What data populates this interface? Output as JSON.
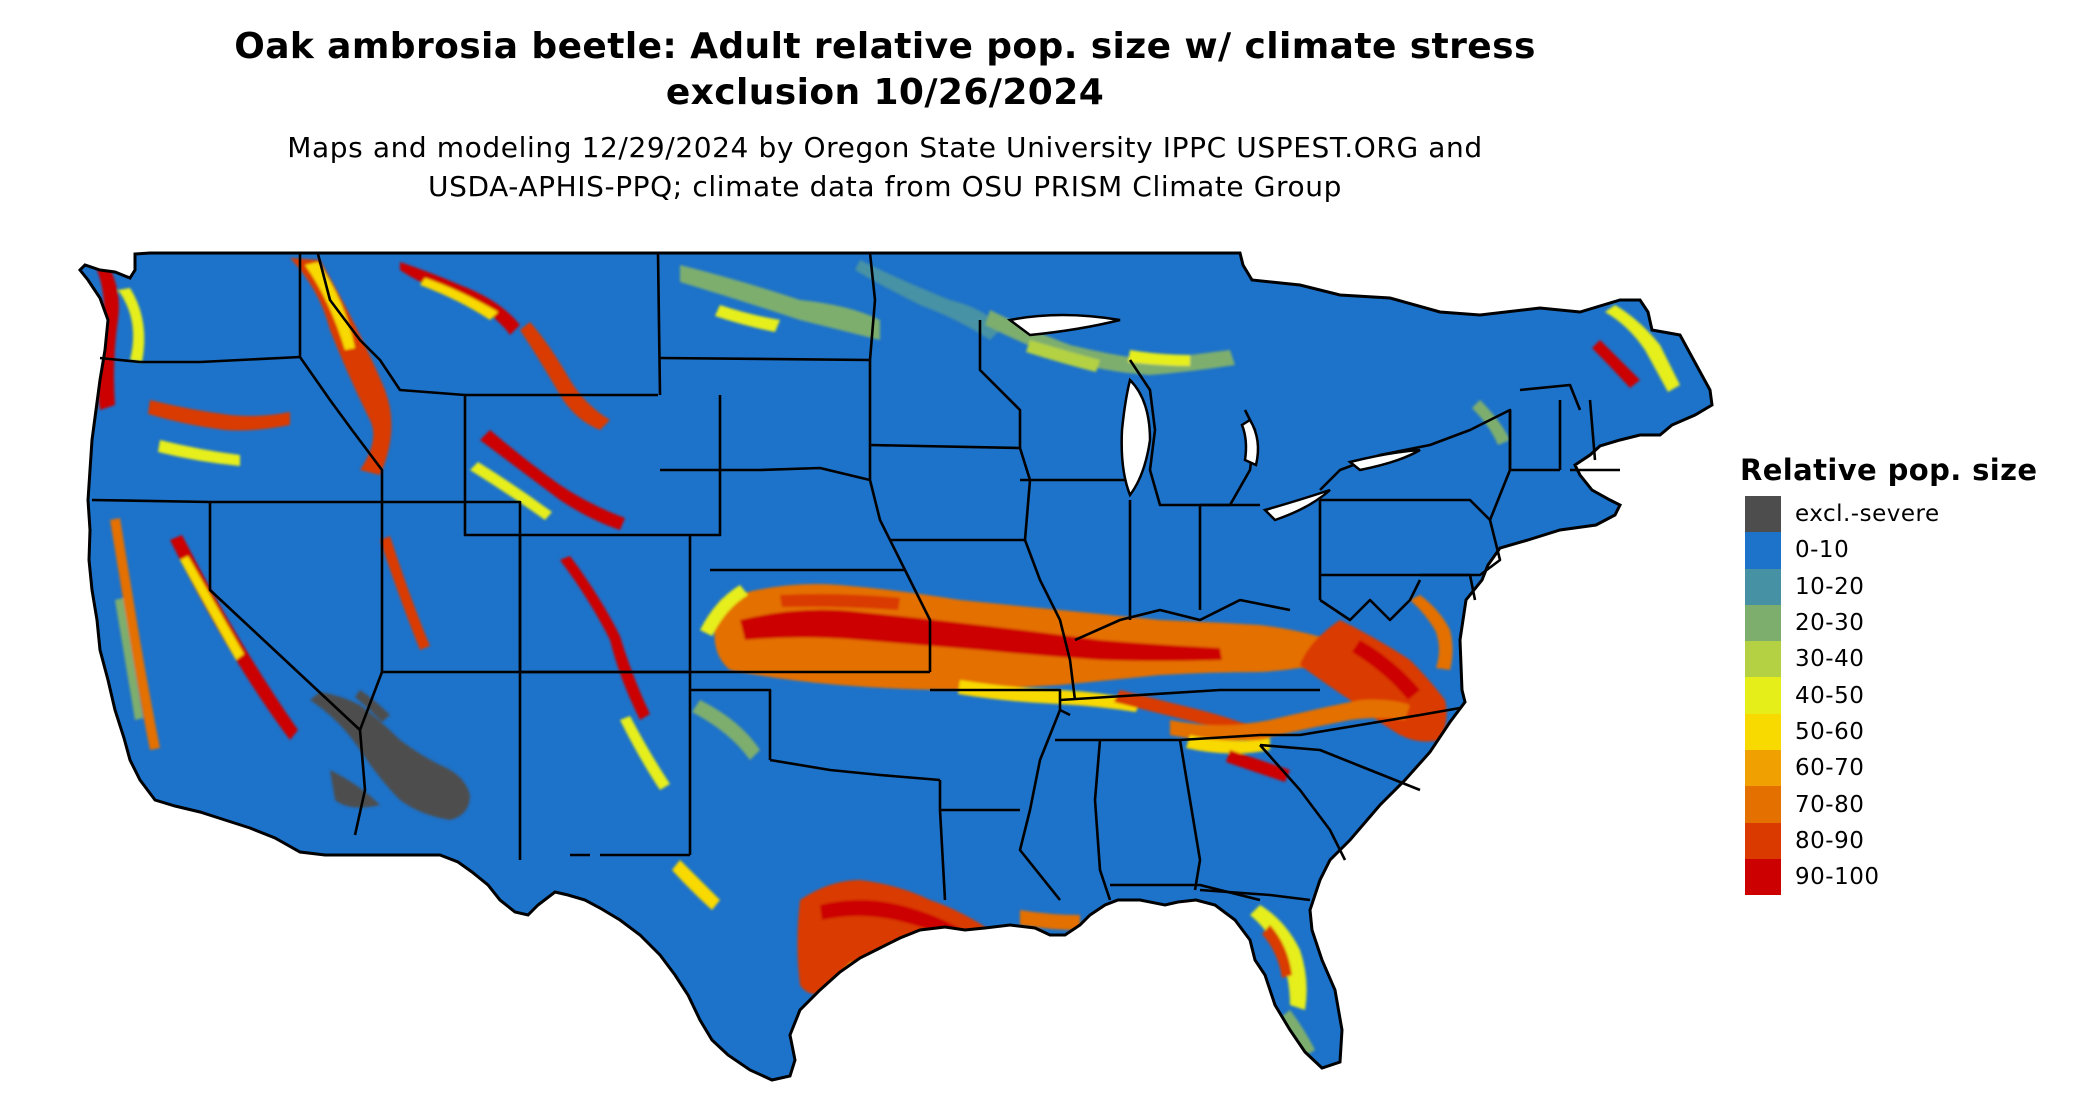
{
  "title_lines": [
    "Oak ambrosia beetle: Adult relative pop. size w/ climate stress",
    "exclusion 10/26/2024"
  ],
  "subtitle_lines": [
    "Maps and modeling 12/29/2024 by Oregon State University IPPC USPEST.ORG and",
    "USDA-APHIS-PPQ; climate data from OSU PRISM Climate Group"
  ],
  "legend": {
    "title": "Relative pop. size",
    "items": [
      {
        "label": "excl.-severe",
        "color": "#4d4d4d"
      },
      {
        "label": "0-10",
        "color": "#1d72c9"
      },
      {
        "label": "10-20",
        "color": "#4692a4"
      },
      {
        "label": "20-30",
        "color": "#7eae6e"
      },
      {
        "label": "30-40",
        "color": "#b3d143"
      },
      {
        "label": "40-50",
        "color": "#e6ee1a"
      },
      {
        "label": "50-60",
        "color": "#f8d900"
      },
      {
        "label": "60-70",
        "color": "#f0a000"
      },
      {
        "label": "70-80",
        "color": "#e47000"
      },
      {
        "label": "80-90",
        "color": "#da3a00"
      },
      {
        "label": "90-100",
        "color": "#cc0000"
      }
    ]
  },
  "map": {
    "region": "Contiguous United States",
    "boundaries": "state borders",
    "background_class": "0-10",
    "high_density_regions": [
      {
        "area": "Kansas-Missouri-Illinois-Kentucky band",
        "classes": [
          "60-70",
          "70-80",
          "80-90",
          "90-100"
        ]
      },
      {
        "area": "Virginia-Maryland-Delaware",
        "classes": [
          "60-70",
          "70-80",
          "80-90",
          "90-100"
        ]
      },
      {
        "area": "Tennessee-North Carolina ridge",
        "classes": [
          "50-60",
          "60-70",
          "80-90"
        ]
      },
      {
        "area": "Texas Gulf coast and Louisiana coast",
        "classes": [
          "50-60",
          "70-80",
          "90-100"
        ]
      },
      {
        "area": "Central Florida",
        "classes": [
          "40-50",
          "60-70",
          "80-90"
        ]
      },
      {
        "area": "Pacific Northwest and Rocky Mountain ranges",
        "classes": [
          "60-70",
          "80-90",
          "90-100"
        ]
      },
      {
        "area": "Upper Great Lakes and northern New England",
        "classes": [
          "10-20",
          "20-30",
          "40-50"
        ]
      }
    ],
    "excluded_regions": [
      {
        "area": "Southwest desert (southern Arizona, southeastern California)",
        "class": "excl.-severe"
      }
    ]
  }
}
